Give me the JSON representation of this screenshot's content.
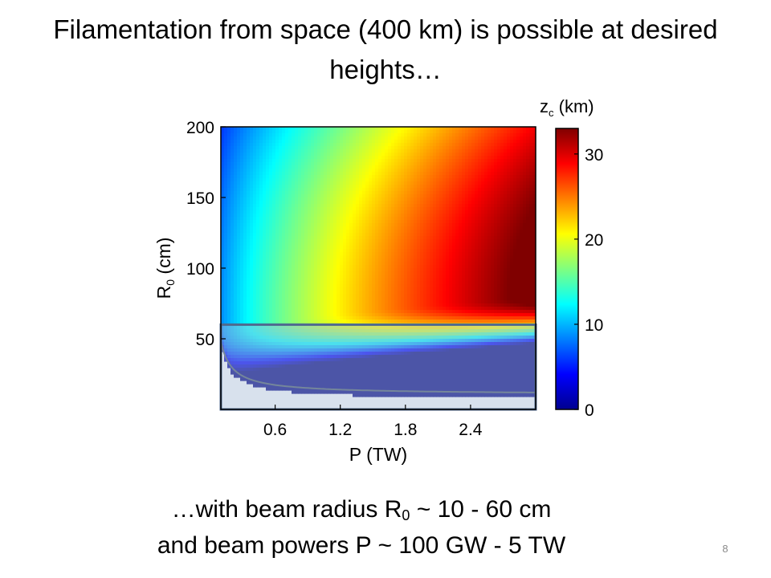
{
  "slide": {
    "title": "Filamentation from space (400 km) is possible at desired heights…",
    "subtitle_line1_pre": "…with beam radius  R",
    "subtitle_line1_sub": "0",
    "subtitle_line1_post": " ~ 10 - 60 cm",
    "subtitle_line2": "and beam powers  P ~ 100 GW - 5 TW",
    "slide_number": "8"
  },
  "chart_data": {
    "type": "heatmap",
    "xlabel": "P (TW)",
    "ylabel_main": "R",
    "ylabel_sub": "0",
    "ylabel_unit": " (cm)",
    "x_ticks": [
      "0.6",
      "1.2",
      "1.8",
      "2.4"
    ],
    "x_tick_values": [
      0.6,
      1.2,
      1.8,
      2.4
    ],
    "y_ticks": [
      "50",
      "100",
      "150",
      "200"
    ],
    "y_tick_values": [
      50,
      100,
      150,
      200
    ],
    "xlim": [
      0.1,
      3.0
    ],
    "ylim": [
      0,
      200
    ],
    "colorbar": {
      "label_main": "z",
      "label_sub": "c",
      "label_unit": " (km)",
      "ticks": [
        "0",
        "10",
        "20",
        "30"
      ],
      "tick_values": [
        0,
        10,
        20,
        30
      ],
      "range": [
        0,
        33
      ],
      "colormap": "jet"
    },
    "highlight_region": {
      "x_range": [
        0.1,
        3.0
      ],
      "y_range": [
        0,
        60
      ]
    },
    "colors": {
      "highlight_border": "#4f6a8f",
      "highlight_fill": "#a8bcd6",
      "contour": "#4a5a6a"
    }
  }
}
